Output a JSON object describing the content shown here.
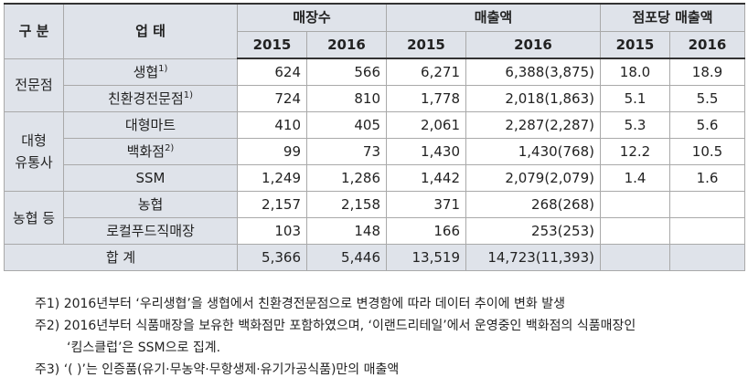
{
  "header": {
    "category": "구 분",
    "business": "업 태",
    "stores": "매장수",
    "sales": "매출액",
    "per_store": "점포당 매출액",
    "years": [
      "2015",
      "2016",
      "2015",
      "2016",
      "2015",
      "2016"
    ]
  },
  "groups": [
    {
      "label": "전문점"
    },
    {
      "label": "대형\n유통사"
    },
    {
      "label": "농협 등"
    }
  ],
  "rows": [
    {
      "name": "생협",
      "sup": "1)",
      "stores_2015": "624",
      "stores_2016": "566",
      "sales_2015": "6,271",
      "sales_2016": "6,388(3,875)",
      "per_2015": "18.0",
      "per_2016": "18.9"
    },
    {
      "name": "친환경전문점",
      "sup": "1)",
      "stores_2015": "724",
      "stores_2016": "810",
      "sales_2015": "1,778",
      "sales_2016": "2,018(1,863)",
      "per_2015": "5.1",
      "per_2016": "5.5"
    },
    {
      "name": "대형마트",
      "sup": "",
      "stores_2015": "410",
      "stores_2016": "405",
      "sales_2015": "2,061",
      "sales_2016": "2,287(2,287)",
      "per_2015": "5.3",
      "per_2016": "5.6"
    },
    {
      "name": "백화점",
      "sup": "2)",
      "stores_2015": "99",
      "stores_2016": "73",
      "sales_2015": "1,430",
      "sales_2016": "1,430(768)",
      "per_2015": "12.2",
      "per_2016": "10.5"
    },
    {
      "name": "SSM",
      "sup": "",
      "stores_2015": "1,249",
      "stores_2016": "1,286",
      "sales_2015": "1,442",
      "sales_2016": "2,079(2,079)",
      "per_2015": "1.4",
      "per_2016": "1.6"
    },
    {
      "name": "농협",
      "sup": "",
      "stores_2015": "2,157",
      "stores_2016": "2,158",
      "sales_2015": "371",
      "sales_2016": "268(268)",
      "per_2015": "",
      "per_2016": ""
    },
    {
      "name": "로컬푸드직매장",
      "sup": "",
      "stores_2015": "103",
      "stores_2016": "148",
      "sales_2015": "166",
      "sales_2016": "253(253)",
      "per_2015": "",
      "per_2016": ""
    }
  ],
  "total": {
    "label": "합 계",
    "stores_2015": "5,366",
    "stores_2016": "5,446",
    "sales_2015": "13,519",
    "sales_2016": "14,723(11,393)"
  },
  "notes": [
    "주1) 2016년부터 ‘우리생협’을 생협에서 친환경전문점으로 변경함에 따라 데이터 추이에 변화 발생",
    "주2) 2016년부터 식품매장을 보유한 백화점만 포함하였으며, ‘이랜드리테일’에서 운영중인 백화점의 식품매장인",
    "‘킴스클럽’은 SSM으로 집계.",
    "주3) ‘(    )’는 인증품(유기·무농약·무항생제·유기가공식품)만의 매출액"
  ]
}
